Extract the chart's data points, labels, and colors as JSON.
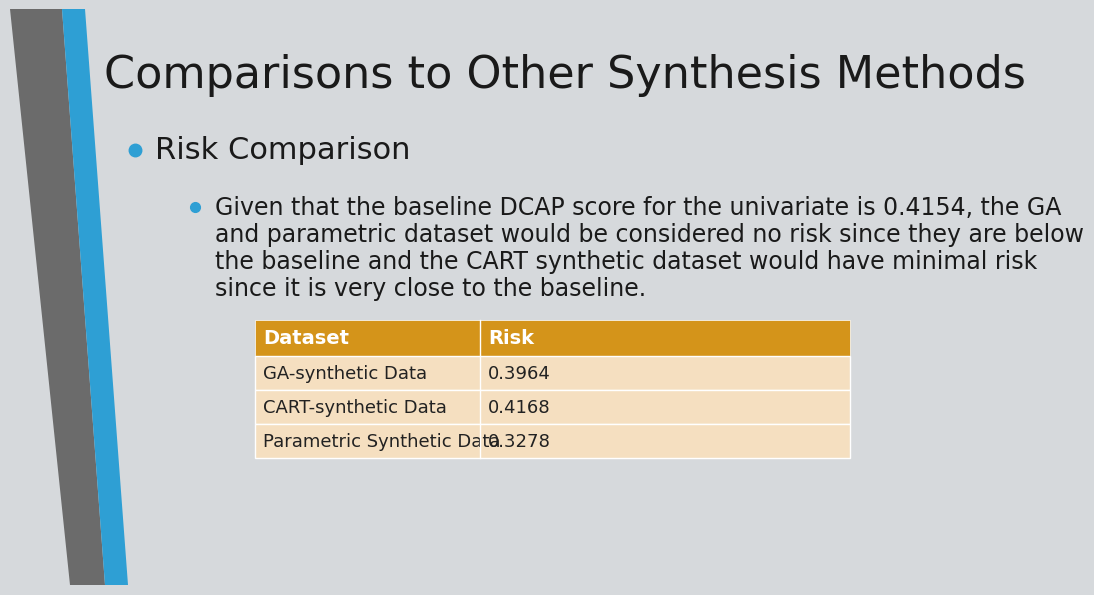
{
  "title": "Comparisons to Other Synthesis Methods",
  "title_fontsize": 32,
  "background_color": "#D6D9DC",
  "bullet1": "Risk Comparison",
  "bullet1_fontsize": 22,
  "bullet2_lines": [
    "Given that the baseline DCAP score for the univariate is 0.4154, the GA",
    "and parametric dataset would be considered no risk since they are below",
    "the baseline and the CART synthetic dataset would have minimal risk",
    "since it is very close to the baseline."
  ],
  "bullet2_fontsize": 17,
  "table_header": [
    "Dataset",
    "Risk"
  ],
  "table_rows": [
    [
      "GA-synthetic Data",
      "0.3964"
    ],
    [
      "CART-synthetic Data",
      "0.4168"
    ],
    [
      "Parametric Synthetic Data",
      "0.3278"
    ]
  ],
  "table_header_bg": "#D4941A",
  "table_row_bg": "#F5DFC0",
  "table_header_text_color": "#FFFFFF",
  "table_row_text_color": "#222222",
  "table_fontsize": 14,
  "gray_bar_color": "#6B6B6B",
  "blue_bar_color": "#2E9FD4",
  "bullet_color": "#2E9FD4",
  "text_color": "#1A1A1A"
}
